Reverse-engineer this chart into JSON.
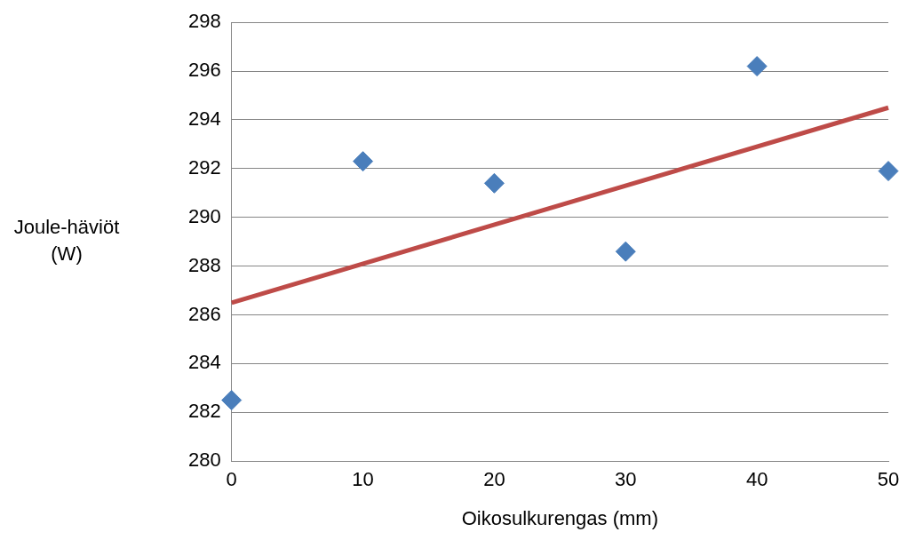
{
  "chart_data": {
    "type": "scatter",
    "xlabel": "Oikosulkurengas (mm)",
    "ylabel": "Joule-häviöt (W)",
    "xlim": [
      0,
      50
    ],
    "xticks": [
      0,
      10,
      20,
      30,
      40,
      50
    ],
    "ylim": [
      280,
      298
    ],
    "yticks": [
      280,
      282,
      284,
      286,
      288,
      290,
      292,
      294,
      296,
      298
    ],
    "grid": "y",
    "legend": false,
    "marker": "diamond",
    "series": [
      {
        "type": "scatter",
        "color": "#4a7ebb",
        "x": [
          0,
          10,
          20,
          30,
          40,
          50
        ],
        "values": [
          282.5,
          292.3,
          291.4,
          288.6,
          296.2,
          291.9
        ]
      },
      {
        "type": "line",
        "color": "#be4b48",
        "x": [
          0,
          50
        ],
        "values": [
          286.5,
          294.5
        ],
        "marker": "none",
        "line_style": "solid"
      }
    ]
  }
}
